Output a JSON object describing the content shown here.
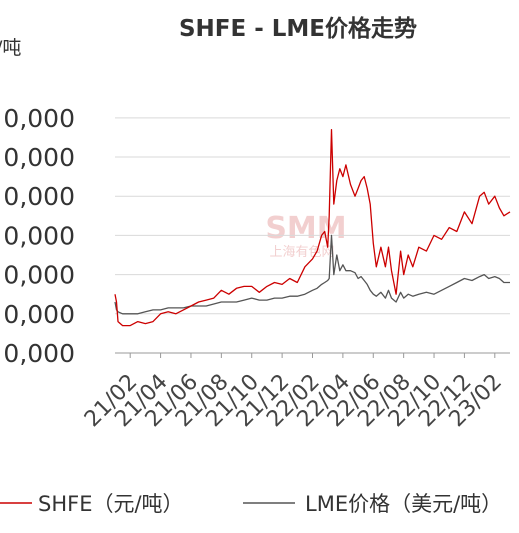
{
  "chart_data": {
    "type": "line",
    "title": "SHFE - LME价格走势",
    "unit_label": "/吨",
    "y_tick_labels": [
      "0,000",
      "0,000",
      "0,000",
      "0,000",
      "0,000",
      "0,000",
      "0,000"
    ],
    "y_tick_values": [
      60,
      50,
      40,
      30,
      20,
      10,
      0
    ],
    "ylim": [
      0,
      62
    ],
    "x_tick_labels": [
      "21/02",
      "21/04",
      "21/06",
      "21/08",
      "21/10",
      "21/12",
      "22/02",
      "22/04",
      "22/06",
      "22/08",
      "22/10",
      "22/12",
      "23/02"
    ],
    "x_tick_values": [
      0,
      2,
      4,
      6,
      8,
      10,
      12,
      14,
      16,
      18,
      20,
      22,
      24
    ],
    "xlim": [
      -1,
      25
    ],
    "grid": "horizontal",
    "legend_position": "bottom",
    "watermark": {
      "logo": "SMM",
      "text": "上海有色网"
    },
    "series": [
      {
        "name": "SHFE（元/吨）",
        "color": "#cc0000",
        "x": [
          -1.0,
          -0.9,
          -0.8,
          -0.5,
          0.0,
          0.5,
          1.0,
          1.5,
          2.0,
          2.5,
          3.0,
          3.5,
          4.0,
          4.5,
          5.0,
          5.5,
          6.0,
          6.5,
          7.0,
          7.5,
          8.0,
          8.5,
          9.0,
          9.5,
          10.0,
          10.5,
          11.0,
          11.5,
          12.0,
          12.3,
          12.6,
          12.8,
          13.0,
          13.1,
          13.25,
          13.4,
          13.6,
          13.8,
          14.0,
          14.2,
          14.5,
          14.8,
          15.0,
          15.2,
          15.4,
          15.6,
          15.8,
          16.0,
          16.2,
          16.5,
          16.8,
          17.0,
          17.2,
          17.5,
          17.8,
          18.0,
          18.3,
          18.6,
          19.0,
          19.5,
          20.0,
          20.5,
          21.0,
          21.5,
          22.0,
          22.5,
          23.0,
          23.3,
          23.6,
          24.0,
          24.3,
          24.6,
          25.0
        ],
        "values": [
          15,
          13,
          8,
          7,
          7,
          8,
          7.5,
          8,
          10,
          10.5,
          10,
          11,
          12,
          13,
          13.5,
          14,
          16,
          15,
          16.5,
          17,
          17,
          15.5,
          17,
          18,
          17.5,
          19,
          18,
          22,
          24,
          26,
          30,
          31,
          27,
          35,
          57,
          38,
          44,
          47,
          45,
          48,
          43,
          40,
          42,
          44,
          45,
          42,
          38,
          28,
          22,
          27,
          22,
          27,
          21,
          15,
          26,
          20,
          25,
          22,
          27,
          26,
          30,
          29,
          32,
          31,
          36,
          33,
          40,
          41,
          38,
          40,
          37,
          35,
          36
        ]
      },
      {
        "name": "LME价格（美元/吨）",
        "color": "#555555",
        "x": [
          -1.0,
          -0.9,
          -0.8,
          -0.5,
          0.0,
          0.5,
          1.0,
          1.5,
          2.0,
          2.5,
          3.0,
          3.5,
          4.0,
          4.5,
          5.0,
          5.5,
          6.0,
          6.5,
          7.0,
          7.5,
          8.0,
          8.5,
          9.0,
          9.5,
          10.0,
          10.5,
          11.0,
          11.5,
          12.0,
          12.3,
          12.6,
          12.8,
          13.0,
          13.1,
          13.25,
          13.4,
          13.6,
          13.8,
          14.0,
          14.2,
          14.5,
          14.8,
          15.0,
          15.2,
          15.4,
          15.6,
          15.8,
          16.0,
          16.2,
          16.5,
          16.8,
          17.0,
          17.2,
          17.5,
          17.8,
          18.0,
          18.3,
          18.6,
          19.0,
          19.5,
          20.0,
          20.5,
          21.0,
          21.5,
          22.0,
          22.5,
          23.0,
          23.3,
          23.6,
          24.0,
          24.3,
          24.6,
          25.0
        ],
        "values": [
          13,
          11,
          10.5,
          10,
          10,
          10,
          10.5,
          11,
          11,
          11.5,
          11.5,
          11.5,
          12,
          12,
          12,
          12.5,
          13,
          13,
          13,
          13.5,
          14,
          13.5,
          13.5,
          14,
          14,
          14.5,
          14.5,
          15,
          16,
          16.5,
          17.5,
          18,
          18.5,
          19,
          30,
          20,
          25,
          21,
          22.5,
          21,
          21,
          20.5,
          19,
          19.5,
          18.5,
          17.5,
          16,
          15,
          14.5,
          15.5,
          14,
          16,
          14,
          13,
          15.5,
          14,
          15,
          14.5,
          15,
          15.5,
          15,
          16,
          17,
          18,
          19,
          18.5,
          19.5,
          20,
          19,
          19.5,
          19,
          18,
          18
        ]
      }
    ]
  }
}
